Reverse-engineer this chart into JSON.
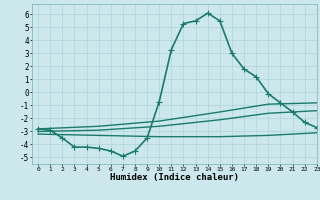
{
  "xlabel": "Humidex (Indice chaleur)",
  "bg_color": "#cce8ec",
  "grid_color": "#afd4d8",
  "line_color": "#1a7a6e",
  "xlim": [
    -0.5,
    23
  ],
  "ylim": [
    -5.5,
    6.8
  ],
  "xticks": [
    0,
    1,
    2,
    3,
    4,
    5,
    6,
    7,
    8,
    9,
    10,
    11,
    12,
    13,
    14,
    15,
    16,
    17,
    18,
    19,
    20,
    21,
    22,
    23
  ],
  "yticks": [
    -5,
    -4,
    -3,
    -2,
    -1,
    0,
    1,
    2,
    3,
    4,
    5,
    6
  ],
  "series": [
    {
      "x": [
        0,
        1,
        2,
        3,
        4,
        5,
        6,
        7,
        8,
        9,
        10,
        11,
        12,
        13,
        14,
        15,
        16,
        17,
        18,
        19,
        20,
        21,
        22,
        23
      ],
      "y": [
        -2.8,
        -2.9,
        -3.5,
        -4.2,
        -4.2,
        -4.3,
        -4.5,
        -4.9,
        -4.5,
        -3.5,
        -0.7,
        3.3,
        5.3,
        5.5,
        6.1,
        5.5,
        3.0,
        1.8,
        1.2,
        -0.1,
        -0.8,
        -1.5,
        -2.3,
        -2.7
      ],
      "marker": "+",
      "linewidth": 1.2,
      "markersize": 4,
      "has_markers": true
    },
    {
      "x": [
        0,
        5,
        10,
        15,
        19,
        23
      ],
      "y": [
        -2.8,
        -2.6,
        -2.2,
        -1.5,
        -0.9,
        -0.8
      ],
      "marker": null,
      "linewidth": 1.0,
      "markersize": 0,
      "has_markers": false
    },
    {
      "x": [
        0,
        5,
        10,
        15,
        19,
        23
      ],
      "y": [
        -3.0,
        -2.9,
        -2.6,
        -2.1,
        -1.6,
        -1.4
      ],
      "marker": null,
      "linewidth": 1.0,
      "markersize": 0,
      "has_markers": false
    },
    {
      "x": [
        0,
        5,
        10,
        15,
        19,
        23
      ],
      "y": [
        -3.2,
        -3.3,
        -3.4,
        -3.4,
        -3.3,
        -3.1
      ],
      "marker": null,
      "linewidth": 1.0,
      "markersize": 0,
      "has_markers": false
    }
  ]
}
